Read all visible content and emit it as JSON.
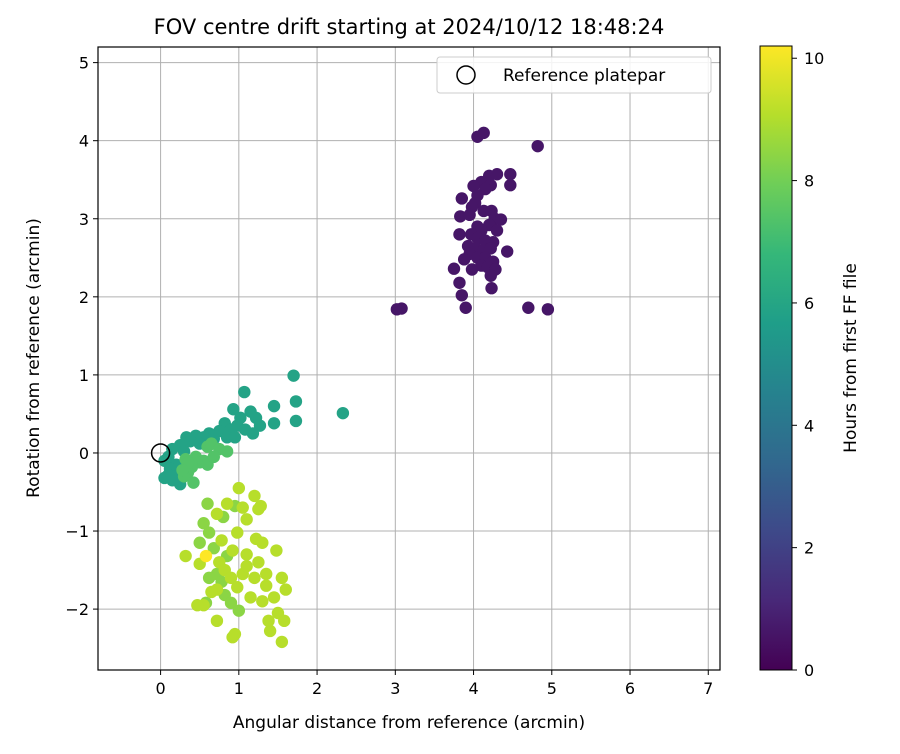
{
  "chart_data": {
    "type": "scatter",
    "title": "FOV centre drift starting at 2024/10/12 18:48:24",
    "xlabel": "Angular distance from reference (arcmin)",
    "ylabel": "Rotation from reference (arcmin)",
    "xlim": [
      -0.8,
      7.15
    ],
    "ylim": [
      -2.78,
      5.2
    ],
    "xticks": [
      "0",
      "1",
      "2",
      "3",
      "4",
      "5",
      "6",
      "7"
    ],
    "yticks": [
      "−2",
      "−1",
      "0",
      "1",
      "2",
      "3",
      "4",
      "5"
    ],
    "grid": true,
    "legend": {
      "position": "top-right",
      "entries": [
        "Reference platepar"
      ]
    },
    "reference_point": {
      "x": 0,
      "y": 0
    },
    "colorbar": {
      "label": "Hours from first FF file",
      "range": [
        0,
        10.2
      ],
      "ticks": [
        "0",
        "2",
        "4",
        "6",
        "8",
        "10"
      ],
      "colormap": "viridis",
      "stops": [
        "#440154",
        "#482878",
        "#3e4989",
        "#31688e",
        "#26828e",
        "#1f9e89",
        "#35b779",
        "#6ece58",
        "#b5de2b",
        "#fde725"
      ]
    },
    "point_groups": [
      {
        "hours": 0.6,
        "points": [
          [
            4.05,
            4.05
          ],
          [
            4.13,
            4.1
          ],
          [
            4.82,
            3.93
          ],
          [
            4.2,
            3.55
          ],
          [
            4.3,
            3.57
          ],
          [
            4.47,
            3.57
          ],
          [
            4.1,
            3.47
          ],
          [
            4.22,
            3.43
          ],
          [
            4.47,
            3.43
          ],
          [
            4.0,
            3.42
          ],
          [
            4.15,
            3.38
          ],
          [
            4.05,
            3.3
          ],
          [
            3.85,
            3.26
          ],
          [
            4.02,
            3.2
          ],
          [
            3.98,
            3.15
          ],
          [
            4.13,
            3.1
          ],
          [
            4.23,
            3.1
          ],
          [
            3.83,
            3.03
          ],
          [
            3.95,
            3.05
          ],
          [
            4.27,
            3.0
          ],
          [
            4.35,
            2.99
          ],
          [
            4.05,
            2.9
          ],
          [
            4.2,
            2.92
          ],
          [
            4.1,
            2.85
          ],
          [
            3.82,
            2.8
          ],
          [
            3.97,
            2.8
          ],
          [
            4.3,
            2.85
          ],
          [
            4.05,
            2.75
          ],
          [
            4.15,
            2.72
          ],
          [
            4.25,
            2.7
          ],
          [
            3.93,
            2.65
          ],
          [
            4.03,
            2.62
          ],
          [
            4.13,
            2.6
          ],
          [
            4.22,
            2.62
          ],
          [
            4.43,
            2.58
          ],
          [
            3.95,
            2.55
          ],
          [
            4.05,
            2.5
          ],
          [
            4.15,
            2.5
          ],
          [
            3.88,
            2.48
          ],
          [
            4.25,
            2.45
          ],
          [
            4.1,
            2.4
          ],
          [
            3.75,
            2.36
          ],
          [
            3.98,
            2.35
          ],
          [
            4.18,
            2.38
          ],
          [
            4.28,
            2.35
          ],
          [
            4.22,
            2.27
          ],
          [
            3.82,
            2.18
          ],
          [
            3.85,
            2.02
          ],
          [
            4.23,
            2.11
          ],
          [
            3.02,
            1.84
          ],
          [
            3.08,
            1.85
          ],
          [
            3.9,
            1.86
          ],
          [
            4.7,
            1.86
          ],
          [
            4.95,
            1.84
          ]
        ]
      },
      {
        "hours": 5.9,
        "points": [
          [
            1.7,
            0.99
          ],
          [
            1.73,
            0.66
          ],
          [
            1.73,
            0.41
          ],
          [
            2.33,
            0.51
          ],
          [
            1.07,
            0.78
          ],
          [
            1.45,
            0.6
          ],
          [
            1.45,
            0.38
          ],
          [
            0.93,
            0.56
          ],
          [
            1.15,
            0.53
          ],
          [
            1.22,
            0.45
          ],
          [
            1.27,
            0.35
          ],
          [
            1.02,
            0.45
          ],
          [
            0.82,
            0.38
          ],
          [
            0.9,
            0.3
          ],
          [
            0.98,
            0.35
          ],
          [
            1.08,
            0.3
          ],
          [
            1.18,
            0.25
          ],
          [
            0.75,
            0.28
          ],
          [
            0.85,
            0.2
          ],
          [
            0.95,
            0.2
          ],
          [
            0.62,
            0.25
          ],
          [
            0.68,
            0.18
          ],
          [
            0.55,
            0.2
          ],
          [
            0.45,
            0.22
          ],
          [
            0.33,
            0.2
          ],
          [
            0.38,
            0.15
          ],
          [
            0.5,
            0.12
          ],
          [
            0.25,
            0.1
          ],
          [
            0.3,
            0.02
          ],
          [
            0.15,
            0.05
          ],
          [
            0.1,
            -0.05
          ],
          [
            0.05,
            -0.1
          ],
          [
            0.2,
            -0.15
          ],
          [
            0.12,
            -0.2
          ],
          [
            0.25,
            -0.25
          ],
          [
            0.2,
            -0.3
          ],
          [
            0.15,
            -0.35
          ],
          [
            0.05,
            -0.32
          ],
          [
            0.25,
            -0.4
          ],
          [
            0.1,
            -0.28
          ],
          [
            0.3,
            -0.18
          ]
        ]
      },
      {
        "hours": 7.4,
        "points": [
          [
            0.6,
            0.08
          ],
          [
            0.65,
            0.12
          ],
          [
            0.75,
            0.05
          ],
          [
            0.85,
            0.02
          ],
          [
            0.45,
            -0.05
          ],
          [
            0.5,
            -0.12
          ],
          [
            0.4,
            -0.18
          ],
          [
            0.55,
            -0.1
          ],
          [
            0.32,
            -0.08
          ],
          [
            0.35,
            -0.25
          ],
          [
            0.3,
            -0.3
          ],
          [
            0.42,
            -0.38
          ],
          [
            0.6,
            -0.15
          ],
          [
            0.68,
            -0.05
          ],
          [
            0.35,
            -0.12
          ],
          [
            0.28,
            -0.22
          ]
        ]
      },
      {
        "hours": 8.4,
        "points": [
          [
            0.95,
            -0.68
          ],
          [
            0.8,
            -0.82
          ],
          [
            0.62,
            -1.02
          ],
          [
            0.68,
            -1.22
          ],
          [
            0.72,
            -1.55
          ],
          [
            0.85,
            -1.32
          ],
          [
            0.78,
            -1.65
          ],
          [
            0.82,
            -1.82
          ],
          [
            0.9,
            -1.92
          ],
          [
            1.0,
            -2.02
          ],
          [
            0.58,
            -1.92
          ],
          [
            0.62,
            -1.6
          ],
          [
            0.55,
            -0.9
          ],
          [
            0.6,
            -0.65
          ],
          [
            0.5,
            -1.15
          ]
        ]
      },
      {
        "hours": 9.1,
        "points": [
          [
            1.0,
            -0.45
          ],
          [
            1.2,
            -0.55
          ],
          [
            1.28,
            -0.68
          ],
          [
            1.05,
            -0.7
          ],
          [
            0.85,
            -0.65
          ],
          [
            0.72,
            -0.78
          ],
          [
            1.1,
            -0.85
          ],
          [
            1.25,
            -0.72
          ],
          [
            0.98,
            -1.02
          ],
          [
            1.22,
            -1.1
          ],
          [
            1.3,
            -1.15
          ],
          [
            1.48,
            -1.25
          ],
          [
            1.1,
            -1.3
          ],
          [
            0.92,
            -1.25
          ],
          [
            0.75,
            -1.4
          ],
          [
            0.82,
            -1.5
          ],
          [
            0.72,
            -1.75
          ],
          [
            0.9,
            -1.6
          ],
          [
            1.05,
            -1.55
          ],
          [
            1.2,
            -1.6
          ],
          [
            1.35,
            -1.7
          ],
          [
            1.15,
            -1.85
          ],
          [
            1.3,
            -1.9
          ],
          [
            1.45,
            -1.85
          ],
          [
            1.6,
            -1.75
          ],
          [
            1.5,
            -2.05
          ],
          [
            1.38,
            -2.15
          ],
          [
            1.58,
            -2.15
          ],
          [
            1.4,
            -2.28
          ],
          [
            1.55,
            -2.42
          ],
          [
            0.95,
            -2.32
          ],
          [
            0.72,
            -2.15
          ],
          [
            0.92,
            -2.36
          ],
          [
            0.55,
            -1.95
          ],
          [
            0.47,
            -1.95
          ],
          [
            0.65,
            -1.78
          ],
          [
            0.32,
            -1.32
          ],
          [
            0.5,
            -1.42
          ],
          [
            0.78,
            -1.12
          ],
          [
            1.25,
            -1.4
          ],
          [
            0.98,
            -1.72
          ],
          [
            1.1,
            -1.45
          ],
          [
            1.35,
            -1.55
          ],
          [
            1.55,
            -1.6
          ]
        ]
      },
      {
        "hours": 10.2,
        "points": [
          [
            0.58,
            -1.32
          ]
        ]
      }
    ]
  }
}
